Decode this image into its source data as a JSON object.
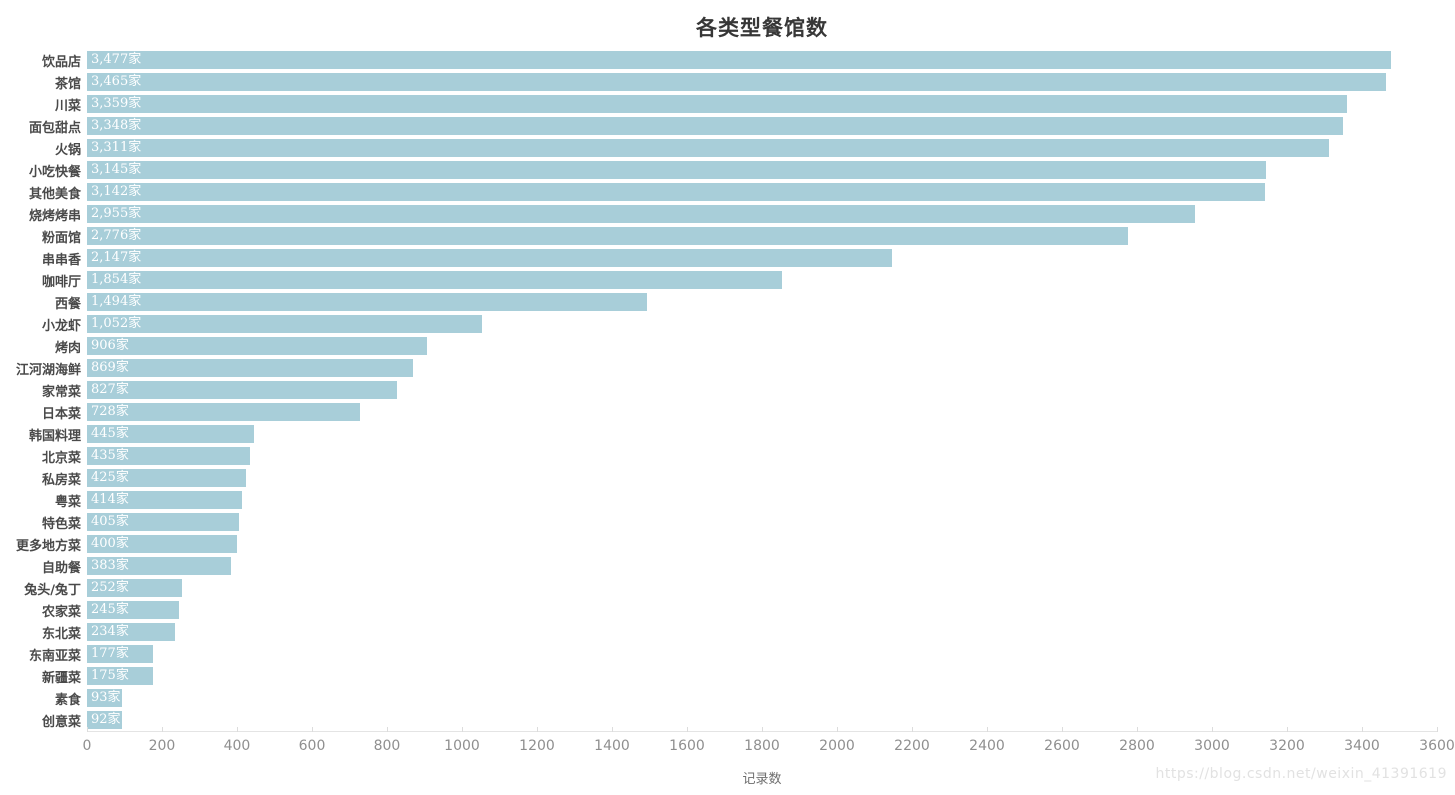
{
  "watermark": "https://blog.csdn.net/weixin_41391619",
  "colors": {
    "bar": "#a8ced9",
    "bar_label_text": "#ffffff",
    "category_text": "#4a4a4a",
    "title_text": "#373737",
    "tick_text": "#8f8f8f",
    "axis_line": "#e4e4e4",
    "watermark_text": "#e2e2e2"
  },
  "chart_data": {
    "type": "bar",
    "orientation": "horizontal",
    "title": "各类型餐馆数",
    "xlabel": "记录数",
    "ylabel": "",
    "xlim": [
      0,
      3600
    ],
    "xticks": [
      0,
      200,
      400,
      600,
      800,
      1000,
      1200,
      1400,
      1600,
      1800,
      2000,
      2200,
      2400,
      2600,
      2800,
      3000,
      3200,
      3400,
      3600
    ],
    "grid": false,
    "legend": false,
    "bar_color": "#a8ced9",
    "categories": [
      "饮品店",
      "茶馆",
      "川菜",
      "面包甜点",
      "火锅",
      "小吃快餐",
      "其他美食",
      "烧烤烤串",
      "粉面馆",
      "串串香",
      "咖啡厅",
      "西餐",
      "小龙虾",
      "烤肉",
      "江河湖海鲜",
      "家常菜",
      "日本菜",
      "韩国料理",
      "北京菜",
      "私房菜",
      "粤菜",
      "特色菜",
      "更多地方菜",
      "自助餐",
      "兔头/兔丁",
      "农家菜",
      "东北菜",
      "东南亚菜",
      "新疆菜",
      "素食",
      "创意菜"
    ],
    "values": [
      3477,
      3465,
      3359,
      3348,
      3311,
      3145,
      3142,
      2955,
      2776,
      2147,
      1854,
      1494,
      1052,
      906,
      869,
      827,
      728,
      445,
      435,
      425,
      414,
      405,
      400,
      383,
      252,
      245,
      234,
      177,
      175,
      93,
      92
    ],
    "bar_labels": [
      "3,477家",
      "3,465家",
      "3,359家",
      "3,348家",
      "3,311家",
      "3,145家",
      "3,142家",
      "2,955家",
      "2,776家",
      "2,147家",
      "1,854家",
      "1,494家",
      "1,052家",
      "906家",
      "869家",
      "827家",
      "728家",
      "445家",
      "435家",
      "425家",
      "414家",
      "405家",
      "400家",
      "383家",
      "252家",
      "245家",
      "234家",
      "177家",
      "175家",
      "93家",
      "92家"
    ]
  }
}
